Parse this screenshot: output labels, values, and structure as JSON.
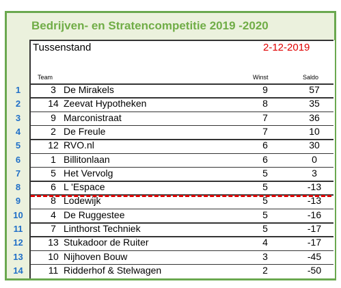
{
  "title": "Bedrijven- en Stratencompetitie 2019 -2020",
  "subtitle": "Tussenstand",
  "date": "2-12-2019",
  "headers": {
    "team": "Team",
    "winst": "Winst",
    "saldo": "Saldo"
  },
  "rows": [
    {
      "rank": "1",
      "team": "3",
      "name": "De Mirakels",
      "winst": "9",
      "saldo": "57"
    },
    {
      "rank": "2",
      "team": "14",
      "name": "Zeevat Hypotheken",
      "winst": "8",
      "saldo": "35"
    },
    {
      "rank": "3",
      "team": "9",
      "name": "Marconistraat",
      "winst": "7",
      "saldo": "36"
    },
    {
      "rank": "4",
      "team": "2",
      "name": "De Freule",
      "winst": "7",
      "saldo": "10"
    },
    {
      "rank": "5",
      "team": "12",
      "name": "RVO.nl",
      "winst": "6",
      "saldo": "30"
    },
    {
      "rank": "6",
      "team": "1",
      "name": "Billitonlaan",
      "winst": "6",
      "saldo": "0"
    },
    {
      "rank": "7",
      "team": "5",
      "name": "Het Vervolg",
      "winst": "5",
      "saldo": "3"
    },
    {
      "rank": "8",
      "team": "6",
      "name": "L 'Espace",
      "winst": "5",
      "saldo": "-13"
    },
    {
      "rank": "9",
      "team": "8",
      "name": "Lodewijk",
      "winst": "5",
      "saldo": "-13"
    },
    {
      "rank": "10",
      "team": "4",
      "name": "De Ruggestee",
      "winst": "5",
      "saldo": "-16"
    },
    {
      "rank": "11",
      "team": "7",
      "name": "Linthorst Techniek",
      "winst": "5",
      "saldo": "-17"
    },
    {
      "rank": "12",
      "team": "13",
      "name": "Stukadoor de Ruiter",
      "winst": "4",
      "saldo": "-17"
    },
    {
      "rank": "13",
      "team": "10",
      "name": "Nijhoven Bouw",
      "winst": "3",
      "saldo": "-45"
    },
    {
      "rank": "14",
      "team": "11",
      "name": "Ridderhof & Stelwagen",
      "winst": "2",
      "saldo": "-50"
    }
  ],
  "colors": {
    "frame": "#6aa84f",
    "title": "#70ad47",
    "rank": "#1f6fc7",
    "date": "#e00000",
    "cutline": "#e00000"
  }
}
